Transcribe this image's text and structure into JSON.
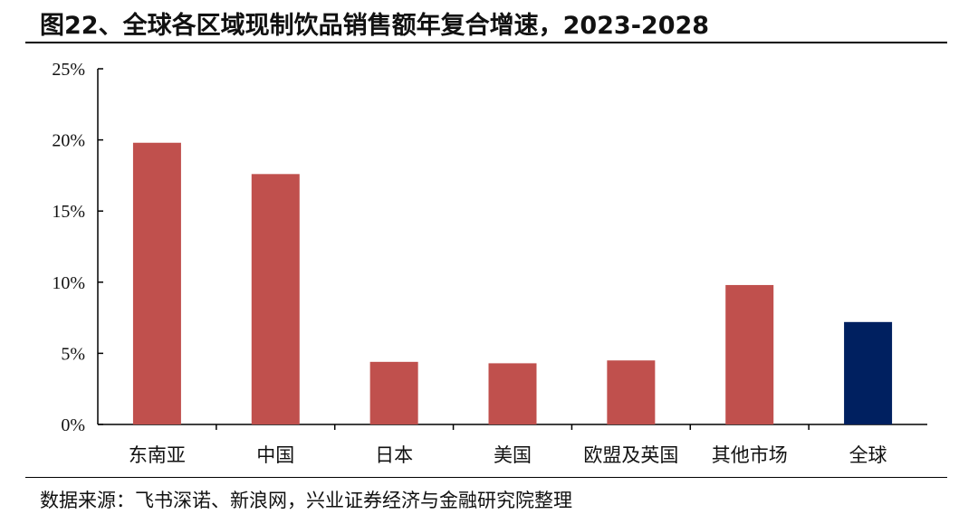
{
  "title": "图22、全球各区域现制饮品销售额年复合增速，2023-2028",
  "source": "数据来源：飞书深诺、新浪网，兴业证券经济与金融研究院整理",
  "colors": {
    "bar_default": "#c0504d",
    "bar_highlight": "#002060",
    "axis": "#000000"
  },
  "chart_data": {
    "type": "bar",
    "categories": [
      "东南亚",
      "中国",
      "日本",
      "美国",
      "欧盟及英国",
      "其他市场",
      "全球"
    ],
    "values": [
      19.8,
      17.6,
      4.4,
      4.3,
      4.5,
      9.8,
      7.2
    ],
    "highlight_index": 6,
    "y_ticks": [
      "0%",
      "5%",
      "10%",
      "15%",
      "20%",
      "25%"
    ],
    "ylim": [
      0,
      25
    ],
    "y_unit": "%",
    "grid": false,
    "legend": "none",
    "xlabel": "",
    "ylabel": ""
  }
}
